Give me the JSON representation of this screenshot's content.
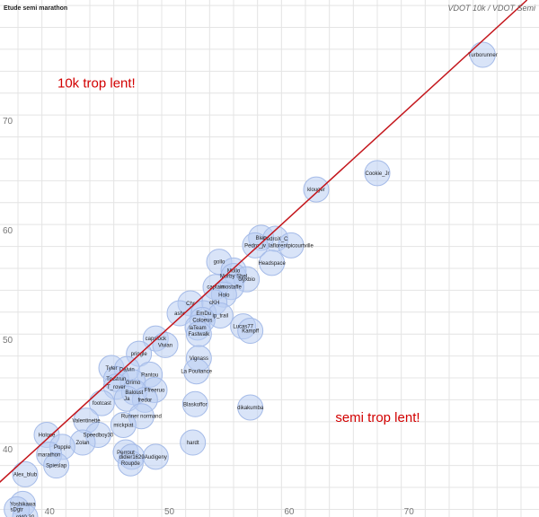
{
  "chart_data": {
    "type": "scatter",
    "title": "Etude semi marathon",
    "subtitle": "VDOT 10k / VDOT Semi",
    "xlim": [
      36.5,
      81.5
    ],
    "ylim": [
      33.3,
      80.5
    ],
    "x_ticks": [
      40,
      50,
      60,
      70
    ],
    "y_ticks": [
      40,
      50,
      60,
      70
    ],
    "x_tick_labels": [
      "40",
      "50",
      "60",
      "70"
    ],
    "y_tick_labels": [
      "40",
      "50",
      "60",
      "70"
    ],
    "grid": true,
    "line_color": "#c4161c",
    "bubble_color": "#b9cdf2",
    "diagonal": [
      [
        33.3,
        33.3
      ],
      [
        80.5,
        80.5
      ]
    ],
    "annotations": [
      {
        "text": "10k trop lent!",
        "x": 41.3,
        "y": 72.5
      },
      {
        "text": "semi trop lent!",
        "x": 64.5,
        "y": 42.0
      }
    ],
    "points": [
      {
        "label": "Turborunner",
        "x": 76.8,
        "y": 75.5
      },
      {
        "label": "Cookie_Jr",
        "x": 68.0,
        "y": 64.7
      },
      {
        "label": "klouger",
        "x": 62.9,
        "y": 63.2
      },
      {
        "label": "Bleu",
        "x": 58.3,
        "y": 58.8
      },
      {
        "label": "PedroX_C",
        "x": 59.5,
        "y": 58.7
      },
      {
        "label": "Pedro_jv",
        "x": 57.8,
        "y": 58.1
      },
      {
        "label": "laflorentpicourtville",
        "x": 60.8,
        "y": 58.1
      },
      {
        "label": "gollo",
        "x": 54.8,
        "y": 56.6
      },
      {
        "label": "Headspace",
        "x": 59.2,
        "y": 56.5
      },
      {
        "label": "Mollo",
        "x": 56.0,
        "y": 55.8
      },
      {
        "label": "Morby Shel",
        "x": 56.0,
        "y": 55.3
      },
      {
        "label": "olyxbio",
        "x": 57.1,
        "y": 55.0
      },
      {
        "label": "captain",
        "x": 54.5,
        "y": 54.3
      },
      {
        "label": "mostaffe",
        "x": 55.8,
        "y": 54.3
      },
      {
        "label": "Holo",
        "x": 55.2,
        "y": 53.6
      },
      {
        "label": "Chr",
        "x": 52.4,
        "y": 52.8
      },
      {
        "label": "cKH",
        "x": 54.4,
        "y": 52.9
      },
      {
        "label": "ashr",
        "x": 51.5,
        "y": 51.9
      },
      {
        "label": "EmDu",
        "x": 53.5,
        "y": 51.9
      },
      {
        "label": "ip_trail",
        "x": 54.9,
        "y": 51.7
      },
      {
        "label": "Coloeus",
        "x": 53.4,
        "y": 51.3
      },
      {
        "label": "laTeam",
        "x": 53.0,
        "y": 50.6
      },
      {
        "label": "Lucas77",
        "x": 56.8,
        "y": 50.7
      },
      {
        "label": "Kampff",
        "x": 57.4,
        "y": 50.3
      },
      {
        "label": "Fastwalk",
        "x": 53.1,
        "y": 50.0
      },
      {
        "label": "capslock",
        "x": 49.5,
        "y": 49.6
      },
      {
        "label": "Vivian",
        "x": 50.3,
        "y": 49.0
      },
      {
        "label": "pringle",
        "x": 48.1,
        "y": 48.2
      },
      {
        "label": "Vignass",
        "x": 53.1,
        "y": 47.8
      },
      {
        "label": "Tyler",
        "x": 45.8,
        "y": 46.9
      },
      {
        "label": "Dalvin",
        "x": 47.1,
        "y": 46.8
      },
      {
        "label": "La Pouliance",
        "x": 52.9,
        "y": 46.6
      },
      {
        "label": "Pantou",
        "x": 49.0,
        "y": 46.3
      },
      {
        "label": "Trustrun",
        "x": 46.2,
        "y": 45.9
      },
      {
        "label": "Grimo",
        "x": 47.6,
        "y": 45.6
      },
      {
        "label": "T_rover",
        "x": 46.2,
        "y": 45.2
      },
      {
        "label": "Ffreeruo",
        "x": 49.4,
        "y": 44.9
      },
      {
        "label": "Baloust",
        "x": 47.7,
        "y": 44.7
      },
      {
        "label": "fredor",
        "x": 48.6,
        "y": 44.0
      },
      {
        "label": "Ja",
        "x": 47.1,
        "y": 44.1
      },
      {
        "label": "footcast",
        "x": 45.0,
        "y": 43.7
      },
      {
        "label": "Blaskoffor",
        "x": 52.8,
        "y": 43.6
      },
      {
        "label": "dikakumba",
        "x": 57.4,
        "y": 43.3
      },
      {
        "label": "Runner normand",
        "x": 48.3,
        "y": 42.5
      },
      {
        "label": "Valentinette",
        "x": 43.7,
        "y": 42.1
      },
      {
        "label": "mickpiat",
        "x": 46.8,
        "y": 41.7
      },
      {
        "label": "Holoce",
        "x": 40.4,
        "y": 40.8
      },
      {
        "label": "Speedboy30",
        "x": 44.7,
        "y": 40.8
      },
      {
        "label": "Zolan",
        "x": 43.4,
        "y": 40.1
      },
      {
        "label": "hardt",
        "x": 52.6,
        "y": 40.1
      },
      {
        "label": "Popple",
        "x": 41.7,
        "y": 39.7
      },
      {
        "label": "Perrout",
        "x": 47.0,
        "y": 39.2
      },
      {
        "label": "marathon",
        "x": 40.6,
        "y": 39.0
      },
      {
        "label": "Audigeny",
        "x": 49.5,
        "y": 38.8
      },
      {
        "label": "didier1629",
        "x": 47.5,
        "y": 38.8
      },
      {
        "label": "Spieslap",
        "x": 41.2,
        "y": 38.0
      },
      {
        "label": "Roupde",
        "x": 47.4,
        "y": 38.2
      },
      {
        "label": "Alex_blub",
        "x": 38.6,
        "y": 37.2
      },
      {
        "label": "Yoshikawa",
        "x": 38.4,
        "y": 34.5
      },
      {
        "label": "sDgtr",
        "x": 37.9,
        "y": 34.0
      },
      {
        "label": "rdd0.30",
        "x": 38.6,
        "y": 33.3
      }
    ]
  }
}
